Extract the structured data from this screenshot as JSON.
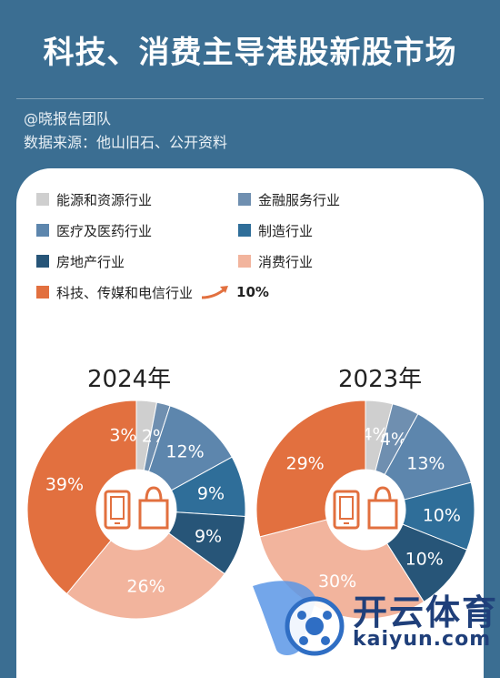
{
  "header": {
    "title": "科技、消费主导港股新股市场",
    "author": "@晓报告团队",
    "source": "数据来源：他山旧石、公开资料"
  },
  "legend": [
    {
      "label": "能源和资源行业",
      "color": "#cfcfcf"
    },
    {
      "label": "金融服务行业",
      "color": "#6f8fb0"
    },
    {
      "label": "医疗及医药行业",
      "color": "#5d86ad"
    },
    {
      "label": "制造行业",
      "color": "#2f6e99"
    },
    {
      "label": "房地产行业",
      "color": "#275578"
    },
    {
      "label": "消费行业",
      "color": "#f2b49d"
    },
    {
      "label": "科技、传媒和电信行业",
      "color": "#e2703f"
    }
  ],
  "growth_label": "10%",
  "watermark": {
    "brand": "开云体育",
    "domain": "kaiyun.com"
  },
  "chart_data": [
    {
      "type": "pie",
      "title": "2024年",
      "categories": [
        "能源和资源行业",
        "金融服务行业",
        "医疗及医药行业",
        "制造行业",
        "房地产行业",
        "消费行业",
        "科技、传媒和电信行业"
      ],
      "values": [
        3,
        2,
        12,
        9,
        9,
        26,
        39
      ],
      "labels": [
        "",
        "2%",
        "12%",
        "9%",
        "9%",
        "26%",
        "39%"
      ],
      "extra_label": "3%"
    },
    {
      "type": "pie",
      "title": "2023年",
      "categories": [
        "能源和资源行业",
        "金融服务行业",
        "医疗及医药行业",
        "制造行业",
        "房地产行业",
        "消费行业",
        "科技、传媒和电信行业"
      ],
      "values": [
        4,
        4,
        13,
        10,
        10,
        30,
        29
      ],
      "labels": [
        "4%",
        "4%",
        "13%",
        "10%",
        "10%",
        "30%",
        "29%"
      ]
    }
  ]
}
